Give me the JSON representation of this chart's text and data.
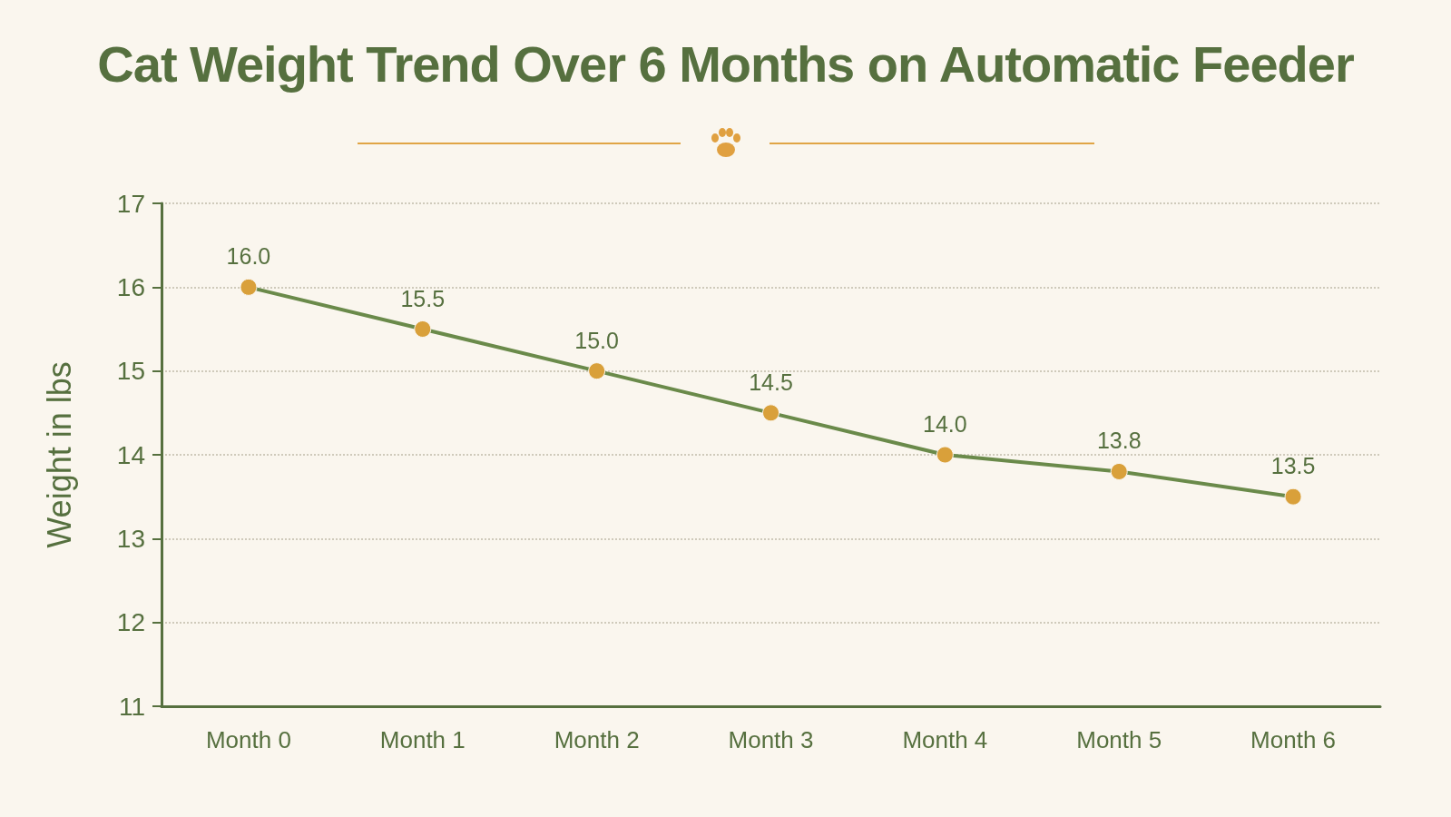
{
  "chart_data": {
    "type": "line",
    "title": "Cat Weight Trend Over 6 Months on Automatic Feeder",
    "ylabel": "Weight in lbs",
    "categories": [
      "Month 0",
      "Month 1",
      "Month 2",
      "Month 3",
      "Month 4",
      "Month 5",
      "Month 6"
    ],
    "series": [
      {
        "color": "#6a8a4a",
        "colors": [
          "#d9a03a",
          "#d9a03a",
          "#d9a03a",
          "#d9a03a",
          "#d9a03a",
          "#d9a03a",
          "#d9a03a"
        ],
        "values": [
          16.0,
          15.5,
          15.0,
          14.5,
          14.0,
          13.8,
          13.5
        ],
        "value_labels": [
          "16.0",
          "15.5",
          "15.0",
          "14.5",
          "14.0",
          "13.8",
          "13.5"
        ]
      }
    ],
    "ylim": [
      11,
      17
    ],
    "yticks": [
      11,
      12,
      13,
      14,
      15,
      16,
      17
    ],
    "grid": "y",
    "marker": "circle",
    "line_style": "solid"
  }
}
